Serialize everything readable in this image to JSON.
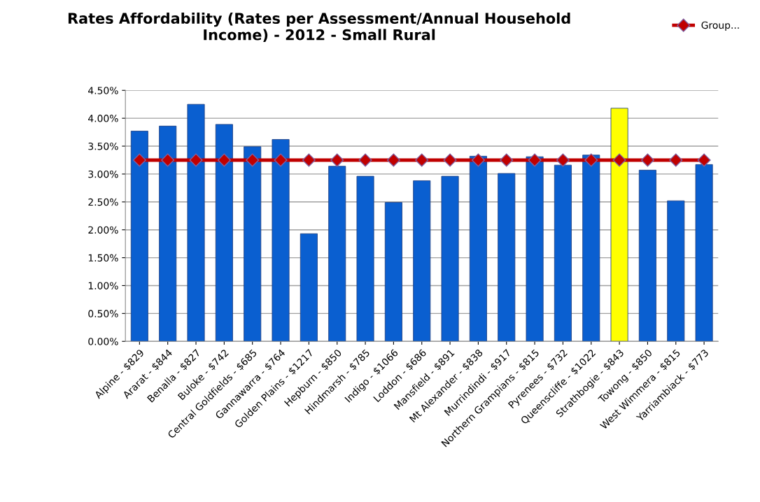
{
  "chart_data": {
    "type": "bar",
    "title": "Rates Affordability (Rates per Assessment/Annual Household\nIncome) - 2012 - Small Rural",
    "categories": [
      "Alpine - $829",
      "Ararat - $844",
      "Benalla - $827",
      "Buloke - $742",
      "Central Goldfields - $685",
      "Gannawarra - $764",
      "Golden Plains - $1217",
      "Hepburn - $850",
      "Hindmarsh - $785",
      "Indigo - $1066",
      "Loddon - $686",
      "Mansfield - $891",
      "Mt Alexander - $838",
      "Murrindindi - $917",
      "Northern Grampians - $815",
      "Pyrenees - $732",
      "Queenscliffe - $1022",
      "Strathbogie - $843",
      "Towong - $850",
      "West Wimmera - $815",
      "Yarriambiack - $773"
    ],
    "series": [
      {
        "colors": [
          "#0a5fd0",
          "#0a5fd0",
          "#0a5fd0",
          "#0a5fd0",
          "#0a5fd0",
          "#0a5fd0",
          "#0a5fd0",
          "#0a5fd0",
          "#0a5fd0",
          "#0a5fd0",
          "#0a5fd0",
          "#0a5fd0",
          "#0a5fd0",
          "#0a5fd0",
          "#0a5fd0",
          "#0a5fd0",
          "#0a5fd0",
          "#ffff00",
          "#0a5fd0",
          "#0a5fd0",
          "#0a5fd0"
        ],
        "values": [
          3.77,
          3.86,
          4.25,
          3.89,
          3.49,
          3.62,
          1.93,
          3.14,
          2.96,
          2.49,
          2.88,
          2.96,
          3.32,
          3.01,
          3.31,
          3.16,
          3.34,
          4.18,
          3.07,
          2.52,
          3.17
        ]
      },
      {
        "type": "line",
        "name": "Group...",
        "color": "#c00000",
        "marker": "diamond",
        "values": [
          3.25,
          3.25,
          3.25,
          3.25,
          3.25,
          3.25,
          3.25,
          3.25,
          3.25,
          3.25,
          3.25,
          3.25,
          3.25,
          3.25,
          3.25,
          3.25,
          3.25,
          3.25,
          3.25,
          3.25,
          3.25
        ]
      }
    ],
    "ylim": [
      0,
      4.5
    ],
    "yticks": [
      {
        "value": 0,
        "label": "0.00%"
      },
      {
        "value": 0.5,
        "label": "0.50%"
      },
      {
        "value": 1,
        "label": "1.00%"
      },
      {
        "value": 1.5,
        "label": "1.50%"
      },
      {
        "value": 2,
        "label": "2.00%"
      },
      {
        "value": 2.5,
        "label": "2.50%"
      },
      {
        "value": 3,
        "label": "3.00%"
      },
      {
        "value": 3.5,
        "label": "3.50%"
      },
      {
        "value": 4,
        "label": "4.00%"
      },
      {
        "value": 4.5,
        "label": "4.50%"
      }
    ],
    "grid": "y",
    "legend": "top right"
  }
}
